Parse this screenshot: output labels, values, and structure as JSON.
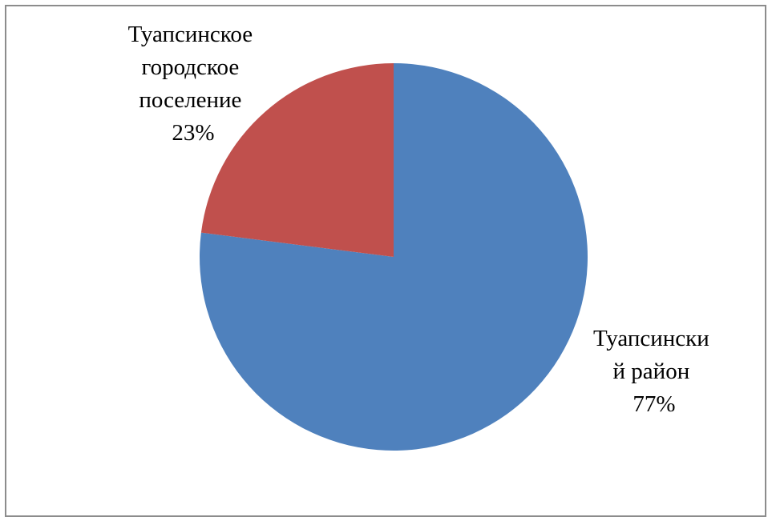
{
  "chart_data": {
    "type": "pie",
    "title": "",
    "slices": [
      {
        "label_lines": [
          "Туапсински",
          "й район"
        ],
        "percent_label": "77%",
        "value": 77,
        "color": "#4f81bd"
      },
      {
        "label_lines": [
          "Туапсинское",
          "городское",
          "поселение"
        ],
        "percent_label": "23%",
        "value": 23,
        "color": "#c0504d"
      }
    ],
    "legend": "none"
  }
}
